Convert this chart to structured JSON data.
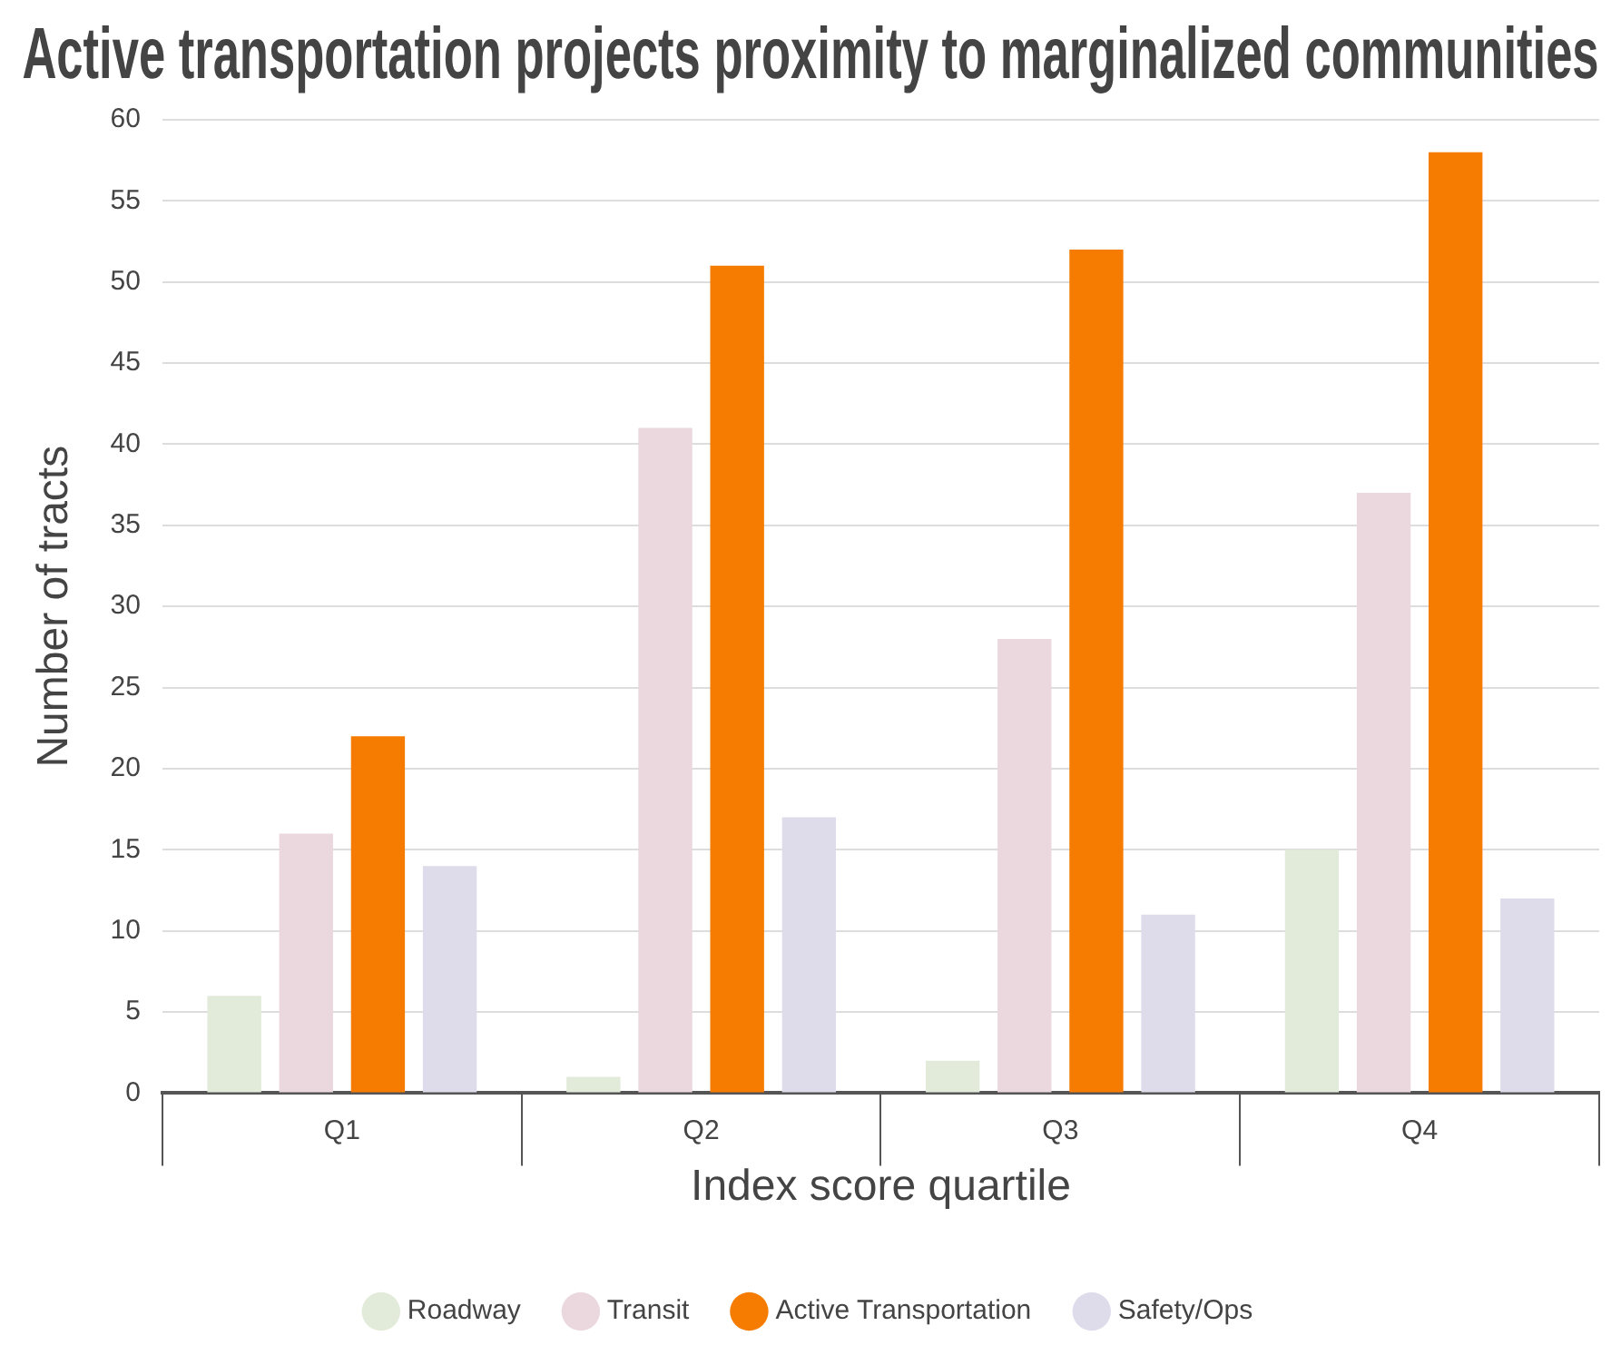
{
  "chart_data": {
    "type": "bar",
    "title": "Active transportation projects proximity to marginalized communities",
    "xlabel": "Index score quartile",
    "ylabel": "Number of tracts",
    "categories": [
      "Q1",
      "Q2",
      "Q3",
      "Q4"
    ],
    "series": [
      {
        "name": "Roadway",
        "color": "#e2ead9",
        "values": [
          6,
          1,
          2,
          15
        ]
      },
      {
        "name": "Transit",
        "color": "#ead8de",
        "values": [
          16,
          41,
          28,
          37
        ]
      },
      {
        "name": "Active Transportation",
        "color": "#f57c00",
        "values": [
          22,
          51,
          52,
          58
        ]
      },
      {
        "name": "Safety/Ops",
        "color": "#dedcea",
        "values": [
          14,
          17,
          11,
          12
        ]
      }
    ],
    "ylim": [
      0,
      60
    ],
    "yticks": [
      0,
      5,
      10,
      15,
      20,
      25,
      30,
      35,
      40,
      45,
      50,
      55,
      60
    ],
    "grid": "y",
    "legend": "bottom"
  }
}
